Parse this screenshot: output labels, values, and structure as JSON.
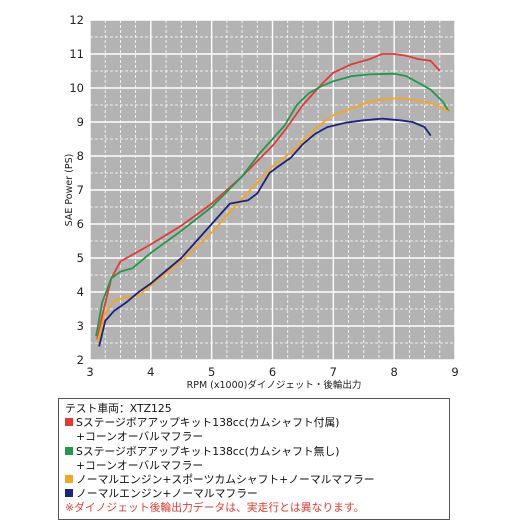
{
  "chart_data": {
    "type": "line",
    "title": "",
    "xlabel": "RPM (x1000)ダイノジェット・後輪出力",
    "ylabel": "SAE Power (PS)",
    "xlim": [
      3,
      9
    ],
    "ylim": [
      2,
      12
    ],
    "xticks": [
      "3",
      "4",
      "5",
      "6",
      "7",
      "8",
      "9"
    ],
    "yticks": [
      "2",
      "3",
      "4",
      "5",
      "6",
      "7",
      "8",
      "9",
      "10",
      "11",
      "12"
    ],
    "grid": true,
    "series": [
      {
        "color": "#e53935",
        "points": [
          [
            3.12,
            2.6
          ],
          [
            3.2,
            3.3
          ],
          [
            3.35,
            4.4
          ],
          [
            3.5,
            4.9
          ],
          [
            3.7,
            5.1
          ],
          [
            4.0,
            5.4
          ],
          [
            4.5,
            5.95
          ],
          [
            5.0,
            6.6
          ],
          [
            5.5,
            7.4
          ],
          [
            6.0,
            8.3
          ],
          [
            6.2,
            8.75
          ],
          [
            6.5,
            9.5
          ],
          [
            6.8,
            10.1
          ],
          [
            7.0,
            10.45
          ],
          [
            7.3,
            10.7
          ],
          [
            7.6,
            10.85
          ],
          [
            7.8,
            11.0
          ],
          [
            8.0,
            11.0
          ],
          [
            8.2,
            10.95
          ],
          [
            8.4,
            10.85
          ],
          [
            8.6,
            10.8
          ],
          [
            8.75,
            10.5
          ]
        ]
      },
      {
        "color": "#1e9a4a",
        "points": [
          [
            3.1,
            2.7
          ],
          [
            3.2,
            3.7
          ],
          [
            3.35,
            4.4
          ],
          [
            3.5,
            4.6
          ],
          [
            3.7,
            4.7
          ],
          [
            4.0,
            5.15
          ],
          [
            4.5,
            5.8
          ],
          [
            5.0,
            6.5
          ],
          [
            5.5,
            7.4
          ],
          [
            5.8,
            8.1
          ],
          [
            6.0,
            8.5
          ],
          [
            6.2,
            8.9
          ],
          [
            6.4,
            9.5
          ],
          [
            6.6,
            9.85
          ],
          [
            6.8,
            10.05
          ],
          [
            7.0,
            10.2
          ],
          [
            7.3,
            10.35
          ],
          [
            7.6,
            10.4
          ],
          [
            8.0,
            10.42
          ],
          [
            8.2,
            10.35
          ],
          [
            8.4,
            10.15
          ],
          [
            8.6,
            9.95
          ],
          [
            8.8,
            9.6
          ],
          [
            8.9,
            9.3
          ]
        ]
      },
      {
        "color": "#f5a623",
        "points": [
          [
            3.12,
            2.5
          ],
          [
            3.25,
            3.4
          ],
          [
            3.4,
            3.75
          ],
          [
            3.6,
            3.85
          ],
          [
            3.8,
            3.9
          ],
          [
            4.0,
            4.2
          ],
          [
            4.5,
            4.9
          ],
          [
            5.0,
            5.75
          ],
          [
            5.5,
            6.75
          ],
          [
            6.0,
            7.7
          ],
          [
            6.3,
            8.1
          ],
          [
            6.5,
            8.45
          ],
          [
            6.8,
            8.95
          ],
          [
            7.0,
            9.2
          ],
          [
            7.3,
            9.4
          ],
          [
            7.6,
            9.6
          ],
          [
            7.9,
            9.68
          ],
          [
            8.1,
            9.7
          ],
          [
            8.3,
            9.65
          ],
          [
            8.5,
            9.6
          ],
          [
            8.7,
            9.5
          ],
          [
            8.9,
            9.3
          ]
        ]
      },
      {
        "color": "#1a237e",
        "points": [
          [
            3.15,
            2.4
          ],
          [
            3.25,
            3.15
          ],
          [
            3.4,
            3.45
          ],
          [
            3.6,
            3.7
          ],
          [
            3.8,
            4.0
          ],
          [
            4.0,
            4.25
          ],
          [
            4.5,
            5.0
          ],
          [
            5.0,
            6.0
          ],
          [
            5.3,
            6.6
          ],
          [
            5.6,
            6.7
          ],
          [
            5.75,
            6.9
          ],
          [
            5.95,
            7.5
          ],
          [
            6.1,
            7.7
          ],
          [
            6.3,
            7.95
          ],
          [
            6.5,
            8.35
          ],
          [
            6.7,
            8.65
          ],
          [
            6.9,
            8.85
          ],
          [
            7.2,
            8.98
          ],
          [
            7.5,
            9.05
          ],
          [
            7.8,
            9.1
          ],
          [
            8.1,
            9.05
          ],
          [
            8.3,
            9.0
          ],
          [
            8.5,
            8.85
          ],
          [
            8.6,
            8.6
          ]
        ]
      }
    ]
  },
  "legend": {
    "lines": [
      {
        "text": "テスト車両：XTZ125",
        "color": "",
        "indent": false
      },
      {
        "text": "Sステージボアアップキット138cc(カムシャフト付属)",
        "color": "#e53935",
        "indent": false
      },
      {
        "text": "+コーンオーバルマフラー",
        "color": "",
        "indent": true
      },
      {
        "text": "Sステージボアアップキット138cc(カムシャフト無し)",
        "color": "#1e9a4a",
        "indent": false
      },
      {
        "text": "+コーンオーバルマフラー",
        "color": "",
        "indent": true
      },
      {
        "text": "ノーマルエンジン+スポーツカムシャフト+ノーマルマフラー",
        "color": "#f5a623",
        "indent": false
      },
      {
        "text": "ノーマルエンジン+ノーマルマフラー",
        "color": "#1a237e",
        "indent": false
      }
    ],
    "note": "※ダイノジェット後輪出力データは、実走行とは異なります。"
  }
}
